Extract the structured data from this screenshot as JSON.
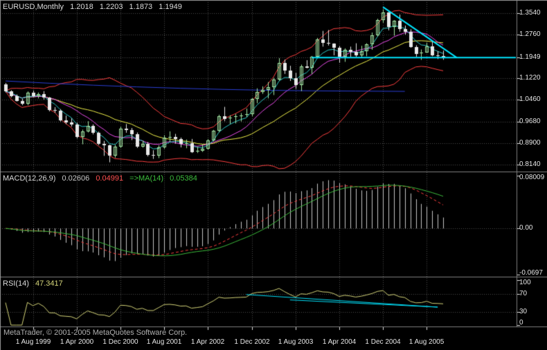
{
  "window": {
    "copyright": "MetaTrader, © 2001-2005 MetaQuotes Software Corp."
  },
  "title": {
    "symbol_period": "EURUSD,Monthly",
    "open": "1.2018",
    "high": "1.2203",
    "low": "1.1873",
    "close": "1.1949"
  },
  "panes": {
    "macd": {
      "label": "MACD(12,26,9)",
      "main_value": "0.02606",
      "signal_value": "0.04991",
      "ma_label": "=>MA(14)",
      "ma_value": "0.05384",
      "axis_labels": [
        "0.08009",
        "0.00",
        "-0.0697"
      ],
      "axis_values": [
        0.08009,
        0,
        -0.0697
      ]
    },
    "rsi": {
      "label": "RSI(14)",
      "value": "47.3417",
      "axis_labels": [
        "100",
        "70",
        "30",
        "0"
      ],
      "axis_values": [
        100,
        70,
        30,
        0
      ]
    }
  },
  "price_axis": {
    "labels": [
      "1.3540",
      "1.2760",
      "1.1949",
      "1.1220",
      "1.0460",
      "0.9680",
      "0.8900",
      "0.8140"
    ],
    "values": [
      1.354,
      1.276,
      1.1949,
      1.122,
      1.046,
      0.968,
      0.89,
      0.814
    ]
  },
  "time_axis": {
    "labels": [
      "1 Aug 1999",
      "1 Apr 2000",
      "1 Dec 2000",
      "1 Aug 2001",
      "1 Apr 2002",
      "1 Dec 2002",
      "1 Aug 2003",
      "1 Apr 2004",
      "1 Dec 2004",
      "1 Aug 2005"
    ],
    "indices": [
      5,
      13,
      21,
      29,
      37,
      45,
      53,
      61,
      69,
      77
    ]
  },
  "colors": {
    "background": "#000000",
    "grid": "#4F4F4F",
    "axis_text": "#E6E6E6",
    "divider": "#7F7F7F",
    "frame": "#999999",
    "candle_up": "#A6E8A6",
    "candle_down": "#E8E8E8",
    "bollinger": "#FF4040",
    "ma_yellow": "#F2F24A",
    "ma_magenta": "#EE4DEE",
    "ma_teal": "#2BC9C9",
    "ma_blue": "#2B3FD6",
    "trendline": "#00E5FF",
    "macd_histogram": "#C9C9C9",
    "macd_signal": "#FF4040",
    "macd_ma": "#3DBD3D",
    "rsi_line": "#D6D67A"
  },
  "chart_data": {
    "type": "candlestick",
    "title": "EURUSD, Monthly",
    "start_month": "1999-03",
    "candles": [
      [
        1.101,
        1.105,
        1.071,
        1.076
      ],
      [
        1.076,
        1.079,
        1.054,
        1.057
      ],
      [
        1.057,
        1.064,
        1.039,
        1.042
      ],
      [
        1.042,
        1.049,
        1.026,
        1.031
      ],
      [
        1.031,
        1.075,
        1.026,
        1.07
      ],
      [
        1.07,
        1.078,
        1.055,
        1.058
      ],
      [
        1.058,
        1.071,
        1.05,
        1.066
      ],
      [
        1.066,
        1.076,
        1.046,
        1.052
      ],
      [
        1.052,
        1.055,
        1.004,
        1.008
      ],
      [
        1.008,
        1.019,
        0.999,
        1.007
      ],
      [
        1.007,
        1.012,
        0.968,
        0.971
      ],
      [
        0.971,
        0.989,
        0.959,
        0.964
      ],
      [
        0.964,
        0.979,
        0.95,
        0.957
      ],
      [
        0.957,
        0.963,
        0.908,
        0.912
      ],
      [
        0.912,
        0.939,
        0.887,
        0.933
      ],
      [
        0.933,
        0.969,
        0.929,
        0.953
      ],
      [
        0.953,
        0.958,
        0.922,
        0.927
      ],
      [
        0.927,
        0.932,
        0.884,
        0.889
      ],
      [
        0.889,
        0.899,
        0.846,
        0.883
      ],
      [
        0.883,
        0.886,
        0.823,
        0.847
      ],
      [
        0.847,
        0.885,
        0.839,
        0.878
      ],
      [
        0.878,
        0.95,
        0.874,
        0.942
      ],
      [
        0.942,
        0.959,
        0.928,
        0.938
      ],
      [
        0.938,
        0.945,
        0.902,
        0.923
      ],
      [
        0.923,
        0.929,
        0.874,
        0.879
      ],
      [
        0.879,
        0.9,
        0.875,
        0.889
      ],
      [
        0.889,
        0.895,
        0.844,
        0.848
      ],
      [
        0.848,
        0.866,
        0.835,
        0.847
      ],
      [
        0.847,
        0.883,
        0.838,
        0.876
      ],
      [
        0.876,
        0.919,
        0.871,
        0.91
      ],
      [
        0.91,
        0.933,
        0.896,
        0.913
      ],
      [
        0.913,
        0.924,
        0.889,
        0.905
      ],
      [
        0.905,
        0.911,
        0.876,
        0.889
      ],
      [
        0.889,
        0.904,
        0.873,
        0.891
      ],
      [
        0.891,
        0.906,
        0.856,
        0.859
      ],
      [
        0.859,
        0.878,
        0.856,
        0.865
      ],
      [
        0.865,
        0.886,
        0.86,
        0.872
      ],
      [
        0.872,
        0.906,
        0.868,
        0.901
      ],
      [
        0.901,
        0.938,
        0.897,
        0.934
      ],
      [
        0.934,
        0.992,
        0.93,
        0.988
      ],
      [
        0.988,
        1.02,
        0.969,
        0.978
      ],
      [
        0.978,
        0.99,
        0.959,
        0.981
      ],
      [
        0.981,
        0.995,
        0.961,
        0.987
      ],
      [
        0.987,
        0.998,
        0.968,
        0.99
      ],
      [
        0.99,
        1.014,
        0.984,
        0.993
      ],
      [
        0.993,
        1.051,
        0.987,
        1.049
      ],
      [
        1.049,
        1.086,
        1.033,
        1.074
      ],
      [
        1.074,
        1.093,
        1.066,
        1.079
      ],
      [
        1.079,
        1.108,
        1.05,
        1.09
      ],
      [
        1.09,
        1.123,
        1.062,
        1.118
      ],
      [
        1.118,
        1.193,
        1.113,
        1.177
      ],
      [
        1.177,
        1.188,
        1.137,
        1.15
      ],
      [
        1.15,
        1.166,
        1.112,
        1.123
      ],
      [
        1.123,
        1.141,
        1.084,
        1.098
      ],
      [
        1.098,
        1.17,
        1.076,
        1.165
      ],
      [
        1.165,
        1.186,
        1.157,
        1.16
      ],
      [
        1.16,
        1.201,
        1.137,
        1.199
      ],
      [
        1.199,
        1.265,
        1.194,
        1.259
      ],
      [
        1.259,
        1.29,
        1.234,
        1.247
      ],
      [
        1.247,
        1.293,
        1.238,
        1.244
      ],
      [
        1.244,
        1.246,
        1.203,
        1.229
      ],
      [
        1.229,
        1.236,
        1.177,
        1.198
      ],
      [
        1.198,
        1.228,
        1.18,
        1.222
      ],
      [
        1.222,
        1.234,
        1.197,
        1.215
      ],
      [
        1.215,
        1.246,
        1.198,
        1.203
      ],
      [
        1.203,
        1.237,
        1.194,
        1.218
      ],
      [
        1.218,
        1.246,
        1.2,
        1.242
      ],
      [
        1.242,
        1.284,
        1.223,
        1.274
      ],
      [
        1.274,
        1.333,
        1.27,
        1.329
      ],
      [
        1.329,
        1.3666,
        1.319,
        1.356
      ],
      [
        1.356,
        1.357,
        1.292,
        1.304
      ],
      [
        1.304,
        1.328,
        1.273,
        1.325
      ],
      [
        1.325,
        1.348,
        1.287,
        1.297
      ],
      [
        1.297,
        1.309,
        1.277,
        1.286
      ],
      [
        1.286,
        1.296,
        1.23,
        1.233
      ],
      [
        1.233,
        1.239,
        1.198,
        1.209
      ],
      [
        1.209,
        1.224,
        1.187,
        1.212
      ],
      [
        1.212,
        1.248,
        1.212,
        1.234
      ],
      [
        1.234,
        1.253,
        1.2,
        1.202
      ],
      [
        1.202,
        1.218,
        1.19,
        1.2
      ],
      [
        1.2018,
        1.2203,
        1.1873,
        1.1949
      ]
    ],
    "price_axis": {
      "ylim": [
        0.8,
        1.385
      ],
      "gridlines": [
        1.354,
        1.276,
        1.1949,
        1.122,
        1.046,
        0.968,
        0.89,
        0.814
      ]
    },
    "overlays": [
      {
        "name": "Bollinger Bands",
        "type": "bollinger",
        "period": 20,
        "deviation": 2,
        "color_key": "bollinger"
      },
      {
        "name": "SMA 20",
        "type": "sma",
        "period": 20,
        "color_key": "ma_yellow"
      },
      {
        "name": "SMA 10",
        "type": "sma",
        "period": 10,
        "color_key": "ma_magenta"
      },
      {
        "name": "EMA 5",
        "type": "ema",
        "period": 5,
        "color_key": "ma_teal"
      },
      {
        "name": "Long MA",
        "type": "polyline",
        "color_key": "ma_blue",
        "points": [
          [
            0,
            1.112
          ],
          [
            8,
            1.104
          ],
          [
            16,
            1.097
          ],
          [
            24,
            1.091
          ],
          [
            32,
            1.086
          ],
          [
            40,
            1.082
          ],
          [
            48,
            1.079
          ],
          [
            56,
            1.077
          ],
          [
            64,
            1.076
          ],
          [
            73,
            1.075
          ]
        ]
      }
    ],
    "trendlines_price": [
      {
        "from": [
          69,
          1.375
        ],
        "to": [
          82.5,
          1.1949
        ]
      },
      {
        "from": [
          56,
          1.1949
        ],
        "to": [
          93.3,
          1.1949
        ]
      }
    ],
    "macd": {
      "fast": 12,
      "slow": 26,
      "signal": 9,
      "ma": 14,
      "ylim": [
        -0.07,
        0.081
      ],
      "axis_values": [
        0.08009,
        0,
        -0.0697
      ]
    },
    "rsi": {
      "period": 14,
      "ylim": [
        0,
        100
      ],
      "levels": [
        70,
        30
      ],
      "axis_values": [
        100,
        70,
        30,
        0
      ],
      "trendlines": [
        {
          "from": [
            44,
            68
          ],
          "to": [
            79,
            40
          ]
        },
        {
          "from": [
            52,
            56
          ],
          "to": [
            79,
            40
          ]
        }
      ]
    }
  }
}
